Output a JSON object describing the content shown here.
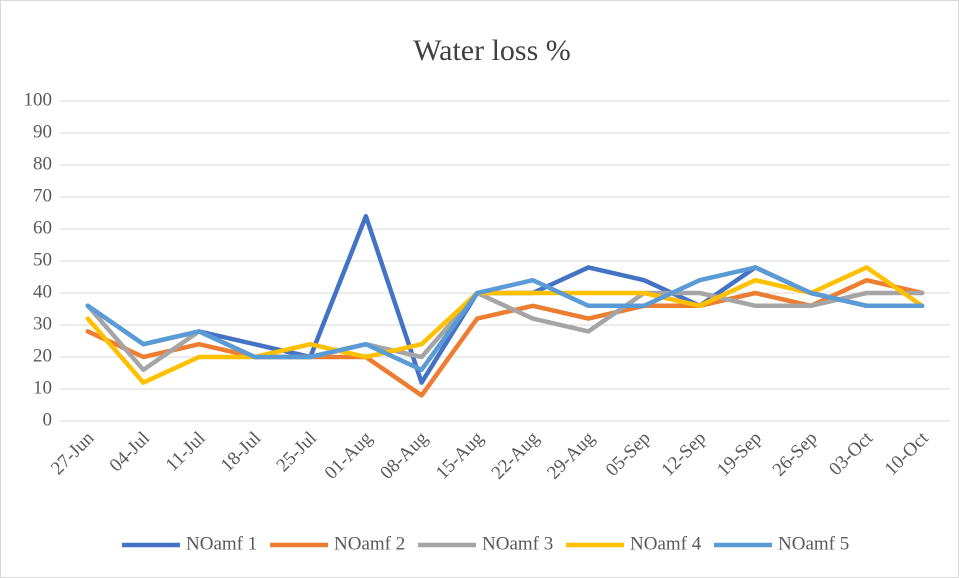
{
  "chart_data": {
    "type": "line",
    "title": "Water loss %",
    "categories": [
      "27-Jun",
      "04-Jul",
      "11-Jul",
      "18-Jul",
      "25-Jul",
      "01-Aug",
      "08-Aug",
      "15-Aug",
      "22-Aug",
      "29-Aug",
      "05-Sep",
      "12-Sep",
      "19-Sep",
      "26-Sep",
      "03-Oct",
      "10-Oct"
    ],
    "series": [
      {
        "name": "NOamf 1",
        "color": "#4472c4",
        "values": [
          36,
          24,
          28,
          24,
          20,
          64,
          12,
          40,
          40,
          48,
          44,
          36,
          48,
          40,
          36,
          36
        ]
      },
      {
        "name": "NOamf 2",
        "color": "#ed7d31",
        "values": [
          28,
          20,
          24,
          20,
          20,
          20,
          8,
          32,
          36,
          32,
          36,
          36,
          40,
          36,
          44,
          40
        ]
      },
      {
        "name": "NOamf 3",
        "color": "#a5a5a5",
        "values": [
          36,
          16,
          28,
          20,
          20,
          24,
          20,
          40,
          32,
          28,
          40,
          40,
          36,
          36,
          40,
          40
        ]
      },
      {
        "name": "NOamf 4",
        "color": "#ffc000",
        "values": [
          32,
          12,
          20,
          20,
          24,
          20,
          24,
          40,
          40,
          40,
          40,
          36,
          44,
          40,
          48,
          36
        ]
      },
      {
        "name": "NOamf 5",
        "color": "#5b9bd5",
        "values": [
          36,
          24,
          28,
          20,
          20,
          24,
          16,
          40,
          44,
          36,
          36,
          44,
          48,
          40,
          36,
          36
        ]
      }
    ],
    "ylim": [
      0,
      100
    ],
    "yticks": [
      0,
      10,
      20,
      30,
      40,
      50,
      60,
      70,
      80,
      90,
      100
    ],
    "grid": true,
    "legend": "bottom"
  }
}
